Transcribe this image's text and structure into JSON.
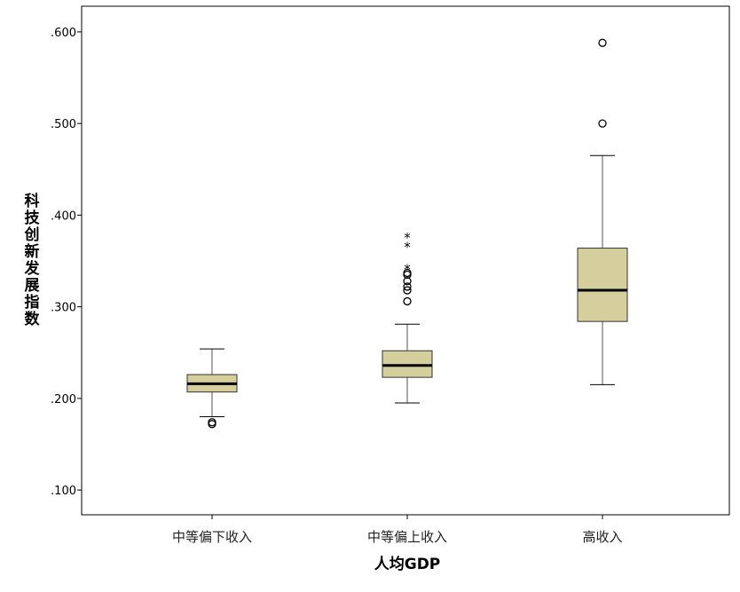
{
  "chart_data": {
    "type": "boxplot",
    "title": "",
    "xlabel": "人均GDP",
    "ylabel": "科技创新发展指数",
    "ylim": [
      0.073,
      0.628
    ],
    "yticks": [
      0.1,
      0.2,
      0.3,
      0.4,
      0.5,
      0.6
    ],
    "ytick_labels": [
      ".100",
      ".200",
      ".300",
      ".400",
      ".500",
      ".600"
    ],
    "grid": false,
    "box_color": "#d4cf9c",
    "categories": [
      "中等偏下收入",
      "中等偏上收入",
      "高收入"
    ],
    "boxes": [
      {
        "min": 0.18,
        "q1": 0.207,
        "median": 0.216,
        "q3": 0.226,
        "max": 0.254,
        "outliers": [
          0.174,
          0.172
        ],
        "extremes": []
      },
      {
        "min": 0.195,
        "q1": 0.223,
        "median": 0.236,
        "q3": 0.252,
        "max": 0.281,
        "outliers": [
          0.337,
          0.335,
          0.328,
          0.322,
          0.318,
          0.306
        ],
        "extremes": [
          0.376,
          0.366,
          0.342
        ]
      },
      {
        "min": 0.215,
        "q1": 0.284,
        "median": 0.318,
        "q3": 0.364,
        "max": 0.465,
        "outliers": [
          0.5,
          0.588
        ],
        "extremes": []
      }
    ]
  }
}
